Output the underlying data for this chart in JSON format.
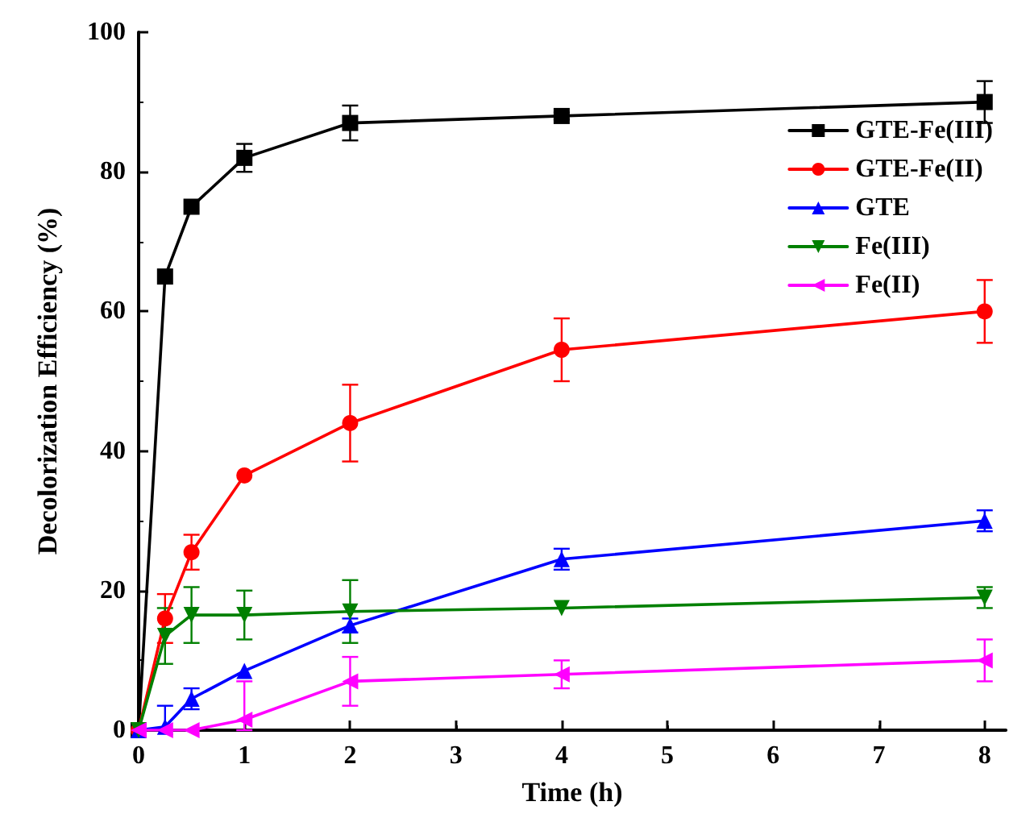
{
  "chart_data": {
    "type": "line",
    "xlabel": "Time (h)",
    "ylabel": "Decolorization Efficiency (%)",
    "x": [
      0,
      0.25,
      0.5,
      1,
      2,
      4,
      8
    ],
    "xlim": [
      0,
      8.2
    ],
    "xticks": [
      0,
      1,
      2,
      3,
      4,
      5,
      6,
      7,
      8
    ],
    "ylim": [
      0,
      100
    ],
    "yticks": [
      0,
      20,
      40,
      60,
      80,
      100
    ],
    "grid": false,
    "legend": "top right",
    "line_style": "solid",
    "series": [
      {
        "name": "GTE-Fe(III)",
        "color": "#000000",
        "marker": "square",
        "values": [
          0,
          65,
          75,
          82,
          87,
          88,
          90
        ],
        "errors": [
          null,
          null,
          null,
          2,
          2.5,
          0.5,
          3
        ]
      },
      {
        "name": "GTE-Fe(II)",
        "color": "#ff0000",
        "marker": "circle",
        "values": [
          0,
          16,
          25.5,
          36.5,
          44,
          54.5,
          60
        ],
        "errors": [
          null,
          3.5,
          2.5,
          null,
          5.5,
          4.5,
          4.5
        ]
      },
      {
        "name": "GTE",
        "color": "#0000ff",
        "marker": "triangle",
        "values": [
          0,
          0.5,
          4.5,
          8.5,
          15,
          24.5,
          30
        ],
        "errors": [
          null,
          [
            0,
            3.5
          ],
          1.5,
          null,
          1,
          1.5,
          1.5
        ]
      },
      {
        "name": "Fe(III)",
        "color": "#008000",
        "marker": "triangle-down",
        "values": [
          0,
          13.5,
          16.5,
          16.5,
          17,
          17.5,
          19
        ],
        "errors": [
          null,
          4,
          4,
          3.5,
          4.5,
          null,
          1.5
        ]
      },
      {
        "name": "Fe(II)",
        "color": "#ff00ff",
        "marker": "triangle-left",
        "values": [
          0,
          0,
          0,
          1.5,
          7,
          8,
          10
        ],
        "errors": [
          null,
          null,
          null,
          [
            0,
            7
          ],
          3.5,
          2,
          3
        ]
      }
    ]
  }
}
